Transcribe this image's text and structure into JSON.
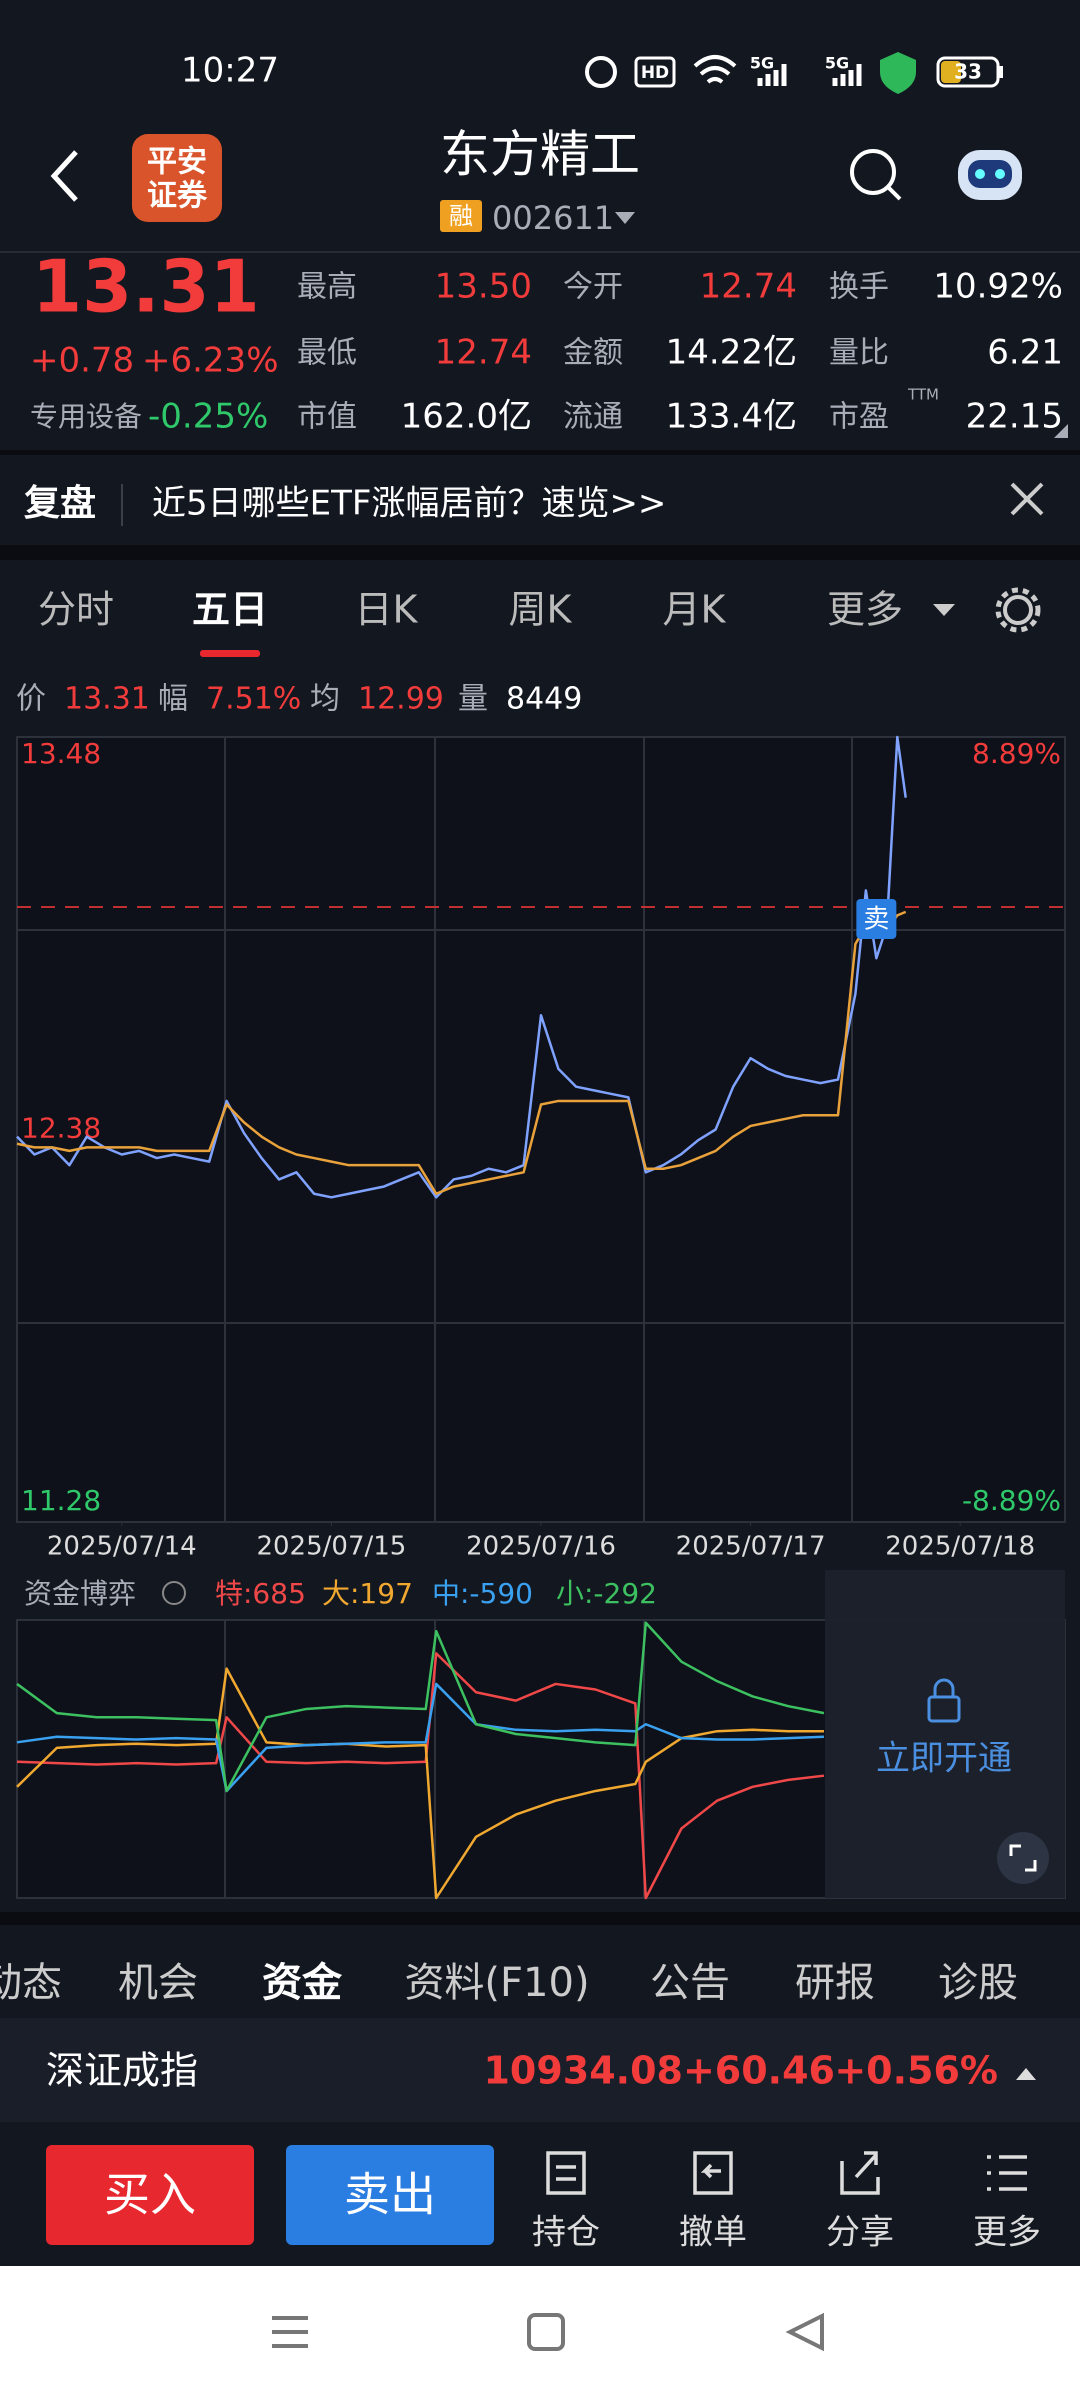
{
  "status_bar": {
    "time": "10:27",
    "hd": "HD",
    "net1": "5G",
    "net2": "5G",
    "battery": "33"
  },
  "header": {
    "logo": [
      "平安",
      "证券"
    ],
    "title": "东方精工",
    "badge": "融",
    "code": "002611"
  },
  "quote": {
    "price": "13.31",
    "change": "+0.78",
    "change_pct": "+6.23%",
    "sector": "专用设备",
    "sector_pct": "-0.25%",
    "ttm": "TTM",
    "stats": [
      {
        "label": "最高",
        "value": "13.50",
        "color": "#f23b3b"
      },
      {
        "label": "今开",
        "value": "12.74",
        "color": "#f23b3b"
      },
      {
        "label": "换手",
        "value": "10.92%",
        "color": "#ffffff"
      },
      {
        "label": "最低",
        "value": "12.74",
        "color": "#f23b3b"
      },
      {
        "label": "金额",
        "value": "14.22亿",
        "color": "#ffffff"
      },
      {
        "label": "量比",
        "value": "6.21",
        "color": "#ffffff"
      },
      {
        "label": "市值",
        "value": "162.0亿",
        "color": "#ffffff"
      },
      {
        "label": "流通",
        "value": "133.4亿",
        "color": "#ffffff"
      },
      {
        "label": "市盈",
        "value": "22.15",
        "color": "#ffffff"
      }
    ]
  },
  "banner": {
    "tag": "复盘",
    "text": "近5日哪些ETF涨幅居前？速览>>"
  },
  "tabs": {
    "items": [
      "分时",
      "五日",
      "日K",
      "周K",
      "月K",
      "更多"
    ],
    "selected": 1
  },
  "chart_info": [
    {
      "label": "价",
      "value": "13.31",
      "color": "#f23b3b"
    },
    {
      "label": "幅",
      "value": "7.51%",
      "color": "#f23b3b"
    },
    {
      "label": "均",
      "value": "12.99",
      "color": "#f23b3b"
    },
    {
      "label": "量",
      "value": "8449",
      "color": "#ffffff"
    }
  ],
  "chart_data": [
    {
      "type": "line",
      "xlim": [
        0,
        5
      ],
      "ylim": [
        11.28,
        13.48
      ],
      "yticks": [
        13.48,
        12.38,
        11.28
      ],
      "y2lim": [
        -8.89,
        8.89
      ],
      "y2ticks": [
        {
          "value": 8.89,
          "label": "8.89%"
        },
        {
          "value": -8.89,
          "label": "-8.89%"
        }
      ],
      "xticks": [
        {
          "value": 0.5,
          "label": "2025/07/14"
        },
        {
          "value": 1.5,
          "label": "2025/07/15"
        },
        {
          "value": 2.5,
          "label": "2025/07/16"
        },
        {
          "value": 3.5,
          "label": "2025/07/17"
        },
        {
          "value": 4.5,
          "label": "2025/07/18"
        }
      ],
      "x": [
        0,
        0.083,
        0.167,
        0.25,
        0.333,
        0.417,
        0.5,
        0.583,
        0.667,
        0.75,
        0.833,
        0.917,
        1,
        1.083,
        1.167,
        1.25,
        1.333,
        1.417,
        1.5,
        1.583,
        1.667,
        1.75,
        1.833,
        1.917,
        2,
        2.083,
        2.167,
        2.25,
        2.333,
        2.417,
        2.5,
        2.583,
        2.667,
        2.75,
        2.833,
        2.917,
        3,
        3.083,
        3.167,
        3.25,
        3.333,
        3.417,
        3.5,
        3.583,
        3.667,
        3.75,
        3.833,
        3.917,
        4,
        4.05,
        4.1,
        4.15,
        4.2,
        4.24
      ],
      "series": [
        {
          "color": "#7fa2ff",
          "values": [
            12.36,
            12.31,
            12.33,
            12.28,
            12.36,
            12.33,
            12.31,
            12.32,
            12.3,
            12.31,
            12.3,
            12.29,
            12.46,
            12.37,
            12.3,
            12.24,
            12.26,
            12.2,
            12.19,
            12.2,
            12.21,
            12.22,
            12.24,
            12.26,
            12.19,
            12.24,
            12.25,
            12.27,
            12.26,
            12.28,
            12.7,
            12.55,
            12.5,
            12.49,
            12.48,
            12.47,
            12.26,
            12.28,
            12.31,
            12.35,
            12.38,
            12.5,
            12.58,
            12.55,
            12.53,
            12.52,
            12.51,
            12.52,
            12.76,
            13.05,
            12.86,
            12.95,
            13.48,
            13.31
          ]
        },
        {
          "color": "#e9a23b",
          "values": [
            12.34,
            12.33,
            12.33,
            12.32,
            12.33,
            12.33,
            12.33,
            12.33,
            12.32,
            12.32,
            12.32,
            12.32,
            12.45,
            12.4,
            12.36,
            12.33,
            12.31,
            12.3,
            12.29,
            12.28,
            12.28,
            12.28,
            12.28,
            12.28,
            12.2,
            12.22,
            12.23,
            12.24,
            12.25,
            12.26,
            12.45,
            12.46,
            12.46,
            12.46,
            12.46,
            12.46,
            12.27,
            12.27,
            12.28,
            12.3,
            12.32,
            12.36,
            12.39,
            12.4,
            12.41,
            12.42,
            12.42,
            12.42,
            12.9,
            12.95,
            12.93,
            12.94,
            12.98,
            12.99
          ]
        }
      ],
      "annotations": [
        {
          "text": "卖",
          "x": 4.1,
          "y": 12.97
        }
      ]
    },
    {
      "type": "line",
      "title": "资金博弈",
      "xlim": [
        0,
        5
      ],
      "ylim": [
        -1000,
        1000
      ],
      "x": [
        0,
        0.19,
        0.38,
        0.57,
        0.76,
        0.95,
        1,
        1.19,
        1.38,
        1.57,
        1.76,
        1.95,
        2,
        2.19,
        2.38,
        2.57,
        2.76,
        2.95,
        3,
        3.17,
        3.34,
        3.51,
        3.68,
        3.85
      ],
      "series": [
        {
          "name": "特:685",
          "color": "#f04848",
          "values": [
            -20,
            -30,
            -40,
            -30,
            -40,
            -30,
            300,
            -20,
            -30,
            -20,
            -30,
            -20,
            760,
            480,
            420,
            540,
            500,
            400,
            -1000,
            -500,
            -300,
            -200,
            -150,
            -120
          ]
        },
        {
          "name": "大:197",
          "color": "#f0a830",
          "values": [
            -200,
            80,
            100,
            110,
            100,
            110,
            650,
            120,
            100,
            110,
            90,
            100,
            -1000,
            -560,
            -400,
            -300,
            -230,
            -180,
            -20,
            150,
            200,
            210,
            200,
            200
          ]
        },
        {
          "name": "中:-590",
          "color": "#3aa0f0",
          "values": [
            120,
            160,
            150,
            140,
            150,
            140,
            -230,
            80,
            100,
            110,
            120,
            120,
            540,
            250,
            210,
            200,
            210,
            200,
            250,
            150,
            140,
            140,
            150,
            160
          ]
        },
        {
          "name": "小:-292",
          "color": "#3cc060",
          "values": [
            540,
            330,
            300,
            300,
            290,
            280,
            -230,
            300,
            360,
            380,
            370,
            360,
            920,
            250,
            180,
            150,
            120,
            100,
            980,
            700,
            560,
            450,
            380,
            330
          ]
        }
      ],
      "overlay": "立即开通"
    }
  ],
  "bottom_tabs": {
    "items": [
      "动态",
      "机会",
      "资金",
      "资料(F10)",
      "公告",
      "研报",
      "诊股"
    ],
    "selected": 2
  },
  "index": {
    "name": "深证成指",
    "value": "10934.08",
    "change": "+60.46",
    "change_pct": "+0.56%"
  },
  "actions": {
    "buy": "买入",
    "sell": "卖出",
    "items": [
      "持仓",
      "撤单",
      "分享",
      "更多"
    ]
  }
}
